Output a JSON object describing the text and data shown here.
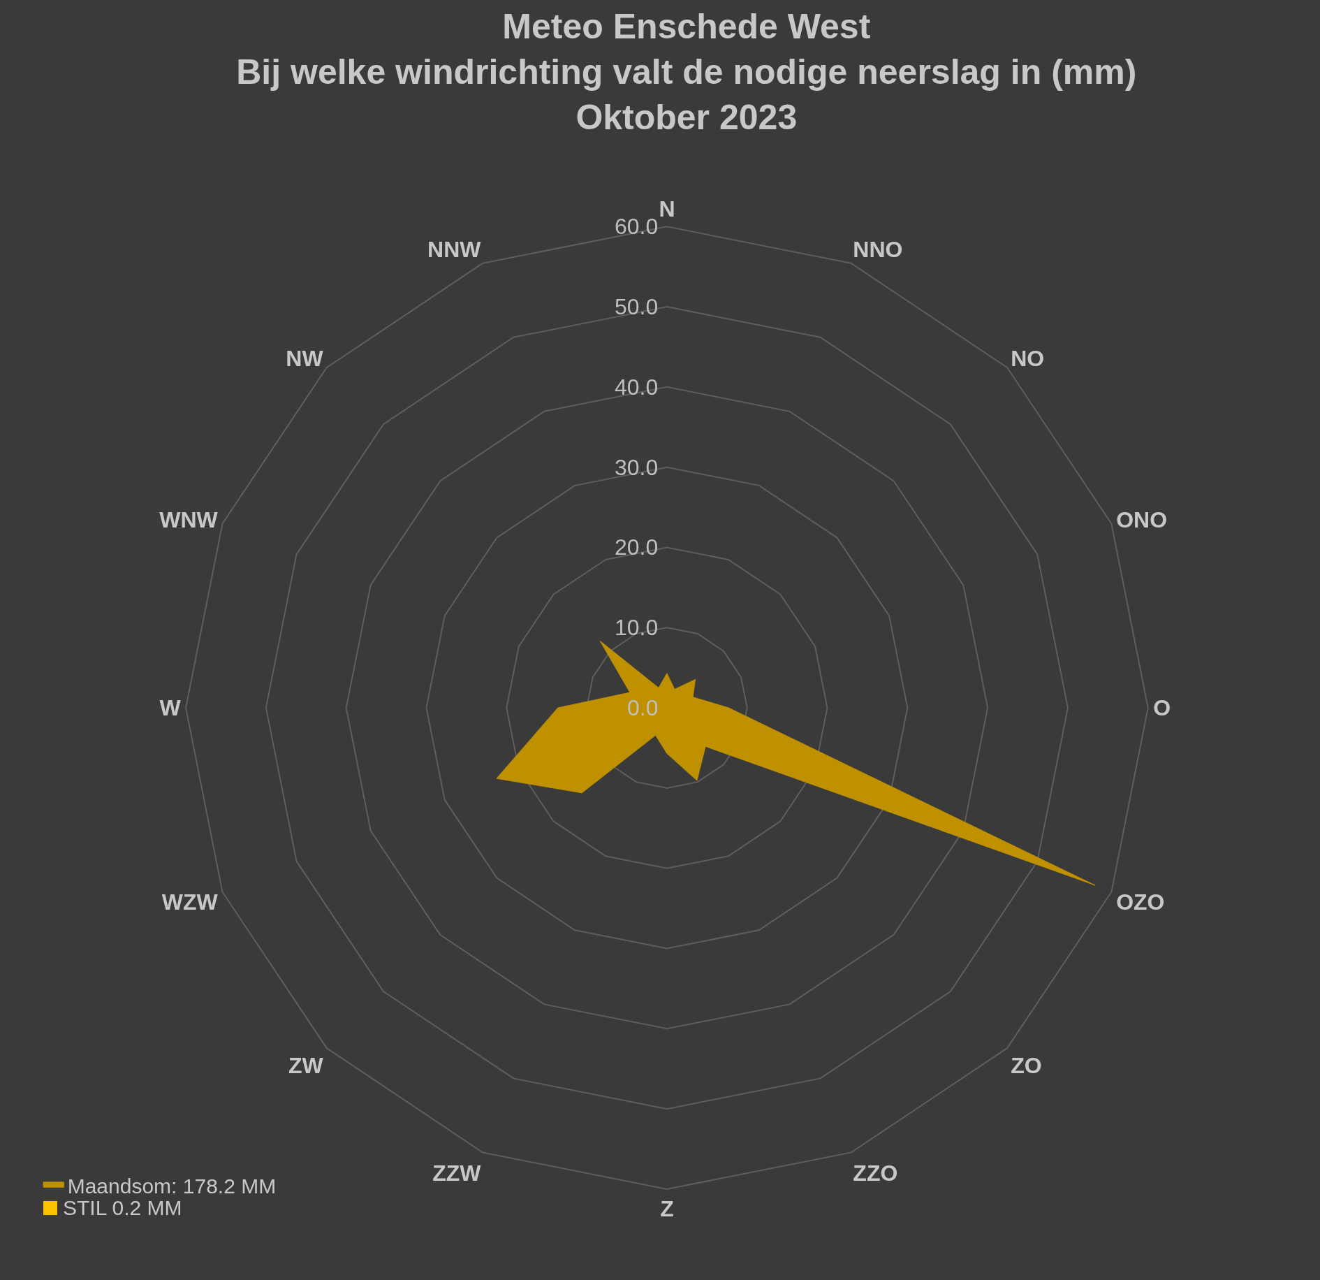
{
  "chart_data": {
    "type": "radar",
    "title": "Meteo Enschede West\nBij welke windrichting valt de nodige neerslag in (mm)\nOktober 2023",
    "categories": [
      "N",
      "NNO",
      "NO",
      "ONO",
      "O",
      "OZO",
      "ZO",
      "ZZO",
      "Z",
      "ZZW",
      "ZW",
      "WZW",
      "W",
      "WNW",
      "NW",
      "NNW"
    ],
    "series": [
      {
        "name": "Maandsom: 178.2 MM",
        "color": "#bf9000",
        "values": [
          4.3,
          2.5,
          5.0,
          3.5,
          7.7,
          57.8,
          6.8,
          9.8,
          5.7,
          3.7,
          15.0,
          23.0,
          13.6,
          5.0,
          11.8,
          2.7
        ]
      }
    ],
    "annotations": [
      "STIL 0.2 MM"
    ],
    "ylim": [
      0,
      60
    ],
    "yticks": [
      {
        "value": 0,
        "label": "0.0"
      },
      {
        "value": 10,
        "label": "10.0"
      },
      {
        "value": 20,
        "label": "20.0"
      },
      {
        "value": 30,
        "label": "30.0"
      },
      {
        "value": 40,
        "label": "40.0"
      },
      {
        "value": 50,
        "label": "50.0"
      },
      {
        "value": 60,
        "label": "60.0"
      }
    ],
    "grid": "y",
    "legend": "bottom left"
  }
}
